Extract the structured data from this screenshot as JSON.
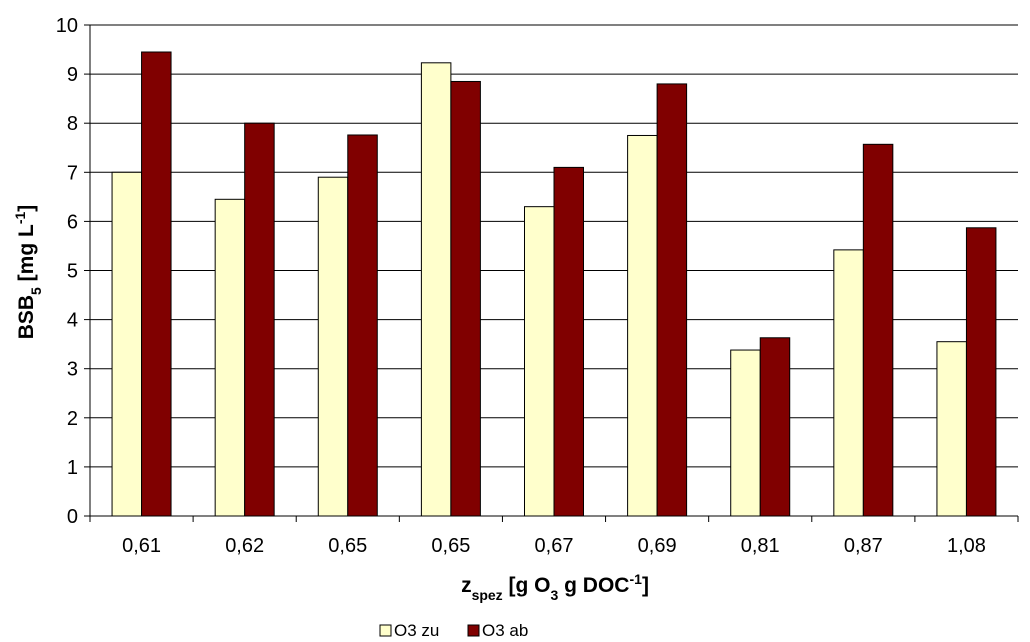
{
  "chart_data": {
    "type": "bar",
    "categories": [
      "0,61",
      "0,62",
      "0,65",
      "0,65",
      "0,67",
      "0,69",
      "0,81",
      "0,87",
      "1,08"
    ],
    "series": [
      {
        "name": "O3 zu",
        "values": [
          7.0,
          6.45,
          6.9,
          9.23,
          6.3,
          7.75,
          3.38,
          5.42,
          3.55
        ],
        "color": "#FFFFCC"
      },
      {
        "name": "O3 ab",
        "values": [
          9.45,
          8.0,
          7.76,
          8.85,
          7.1,
          8.8,
          3.63,
          7.57,
          5.87
        ],
        "color": "#800000"
      }
    ],
    "ylim": [
      0,
      10
    ],
    "yticks": [
      "0",
      "1",
      "2",
      "3",
      "4",
      "5",
      "6",
      "7",
      "8",
      "9",
      "10"
    ],
    "ylabel": {
      "main": "BSB",
      "sub": "5",
      "rest": " [mg L",
      "sup": "-1",
      "end": "]"
    },
    "xlabel": {
      "main": "z",
      "sub": "spez",
      "rest": " [g O",
      "sub2": "3",
      "rest2": " g DOC",
      "sup": "-1",
      "end": "]"
    },
    "grid": "horizontal",
    "legend_position": "bottom"
  }
}
